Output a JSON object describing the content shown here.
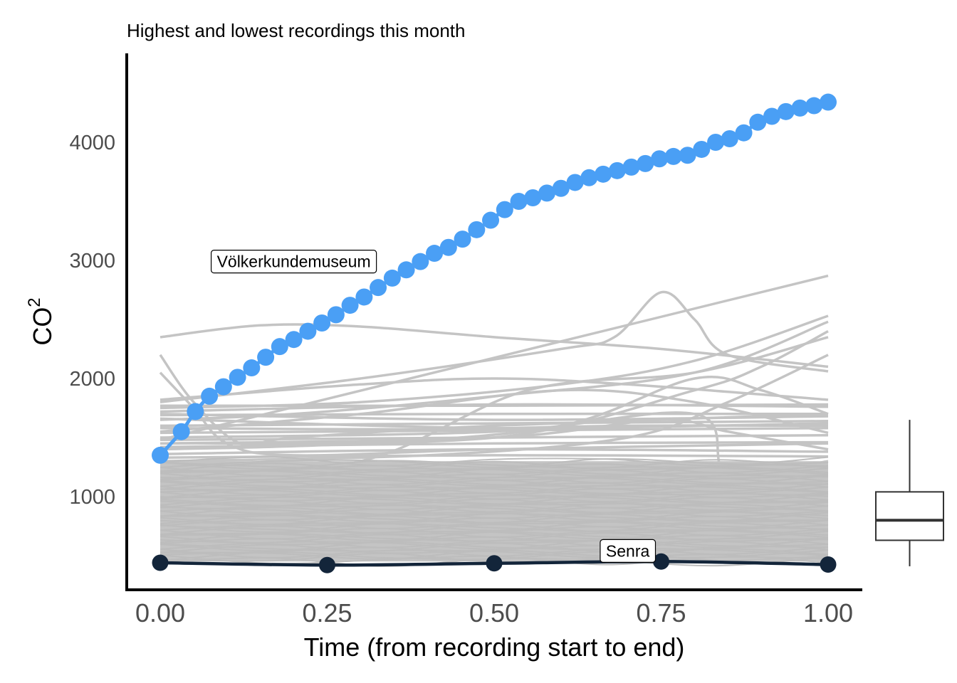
{
  "chart_data": {
    "type": "line",
    "title": "Highest and lowest recordings this month",
    "xlabel": "Time (from recording start to end)",
    "ylabel": "CO",
    "ylabel_superscript": "2",
    "xlim": [
      -0.05,
      1.05
    ],
    "ylim": [
      200,
      4750
    ],
    "x_ticks": [
      "0.00",
      "0.25",
      "0.50",
      "0.75",
      "1.00"
    ],
    "y_ticks": [
      "1000",
      "2000",
      "3000",
      "4000"
    ],
    "grid": false,
    "series": [
      {
        "name": "Völkerkundemuseum",
        "color": "#4a9ff5",
        "x": [
          0,
          0.0316,
          0.0526,
          0.0737,
          0.0947,
          0.1158,
          0.1368,
          0.1579,
          0.1789,
          0.2,
          0.2211,
          0.2421,
          0.2632,
          0.2842,
          0.3053,
          0.3263,
          0.3474,
          0.3684,
          0.3895,
          0.4105,
          0.4316,
          0.4526,
          0.4737,
          0.4947,
          0.5158,
          0.5368,
          0.5579,
          0.5789,
          0.6,
          0.6211,
          0.6421,
          0.6632,
          0.6842,
          0.7053,
          0.7263,
          0.7474,
          0.7684,
          0.7895,
          0.8105,
          0.8316,
          0.8526,
          0.8737,
          0.8947,
          0.9158,
          0.9368,
          0.9579,
          0.9789,
          1.0
        ],
        "y": [
          1350,
          1550,
          1720,
          1850,
          1930,
          2010,
          2090,
          2180,
          2270,
          2330,
          2400,
          2470,
          2540,
          2620,
          2690,
          2770,
          2850,
          2920,
          2990,
          3060,
          3110,
          3180,
          3260,
          3340,
          3430,
          3500,
          3530,
          3570,
          3610,
          3660,
          3700,
          3730,
          3760,
          3790,
          3820,
          3860,
          3880,
          3890,
          3940,
          4000,
          4030,
          4080,
          4170,
          4220,
          4260,
          4290,
          4310,
          4340
        ]
      },
      {
        "name": "Senra",
        "color": "#13253a",
        "x": [
          0,
          0.25,
          0.5,
          0.75,
          1.0
        ],
        "y": [
          440,
          420,
          435,
          450,
          425
        ]
      }
    ],
    "annotations": [
      {
        "text": "Völkerkundemuseum",
        "x": 0.2,
        "y": 2990
      },
      {
        "text": "Senra",
        "x": 0.7,
        "y": 540
      }
    ],
    "background_series": {
      "color": "#c4c4c4",
      "description_count": 150,
      "y_range": [
        450,
        1300
      ]
    },
    "background_lines": [
      {
        "x": [
          0,
          1
        ],
        "y": [
          1480,
          2870
        ]
      },
      {
        "x": [
          0,
          0.15,
          0.3,
          0.5,
          0.75,
          1.0
        ],
        "y": [
          2350,
          2450,
          2440,
          2350,
          2250,
          2100
        ]
      },
      {
        "x": [
          0,
          0.3,
          0.6,
          0.68,
          0.75,
          0.8,
          0.85,
          1.0
        ],
        "y": [
          1800,
          2000,
          2250,
          2350,
          2730,
          2500,
          2200,
          2060
        ]
      },
      {
        "x": [
          0,
          0.3,
          0.6,
          0.8,
          1.0
        ],
        "y": [
          1750,
          1800,
          1950,
          2150,
          2530
        ]
      },
      {
        "x": [
          0,
          0.2,
          0.5,
          0.8,
          1.0
        ],
        "y": [
          1650,
          1700,
          1850,
          2050,
          2480
        ]
      },
      {
        "x": [
          0,
          0.05,
          0.12,
          0.2,
          0.5,
          1.0
        ],
        "y": [
          2200,
          1800,
          1450,
          1500,
          1600,
          1700
        ]
      },
      {
        "x": [
          0,
          0.05,
          0.1,
          0.2,
          0.5,
          1.0
        ],
        "y": [
          2050,
          1750,
          1450,
          1350,
          1400,
          1450
        ]
      },
      {
        "x": [
          0,
          0.3,
          0.5,
          0.7,
          1.0
        ],
        "y": [
          1820,
          1950,
          2000,
          1950,
          1820
        ]
      },
      {
        "x": [
          0,
          0.5,
          1.0
        ],
        "y": [
          1720,
          1780,
          1760
        ]
      },
      {
        "x": [
          0,
          0.5,
          1.0
        ],
        "y": [
          1690,
          1700,
          1700
        ]
      },
      {
        "x": [
          0,
          0.5,
          1.0
        ],
        "y": [
          1770,
          1770,
          1780
        ]
      },
      {
        "x": [
          0,
          0.5,
          1.0
        ],
        "y": [
          1600,
          1620,
          1640
        ]
      },
      {
        "x": [
          0,
          0.4,
          0.7,
          1.0
        ],
        "y": [
          1580,
          1570,
          1600,
          1600
        ]
      },
      {
        "x": [
          0,
          0.3,
          0.55,
          0.8,
          1.0
        ],
        "y": [
          1200,
          1300,
          1900,
          2050,
          2350
        ]
      },
      {
        "x": [
          0,
          0.4,
          0.7,
          0.85,
          1.0
        ],
        "y": [
          1300,
          1350,
          1500,
          1800,
          2200
        ]
      },
      {
        "x": [
          0,
          0.5,
          0.8,
          0.9,
          1.0
        ],
        "y": [
          1450,
          1500,
          1900,
          2100,
          2400
        ]
      },
      {
        "x": [
          0,
          0.3,
          0.6,
          0.8,
          1.0
        ],
        "y": [
          1550,
          1700,
          1900,
          1800,
          1540
        ]
      },
      {
        "x": [
          0,
          0.5,
          0.8,
          0.85,
          1.0
        ],
        "y": [
          1500,
          1550,
          1700,
          1200,
          1300
        ]
      },
      {
        "x": [
          0,
          0.5,
          0.75,
          0.85,
          1.0
        ],
        "y": [
          1450,
          1500,
          1650,
          1550,
          1400
        ]
      },
      {
        "x": [
          0,
          0.3,
          0.6,
          0.8,
          0.9,
          1.0
        ],
        "y": [
          1400,
          1450,
          1600,
          2000,
          1900,
          1700
        ]
      },
      {
        "x": [
          0,
          0.5,
          1.0
        ],
        "y": [
          1540,
          1560,
          1580
        ]
      },
      {
        "x": [
          0,
          0.5,
          1.0
        ],
        "y": [
          1480,
          1500,
          1520
        ]
      },
      {
        "x": [
          0,
          0.5,
          1.0
        ],
        "y": [
          1420,
          1450,
          1460
        ]
      },
      {
        "x": [
          0,
          0.5,
          1.0
        ],
        "y": [
          1360,
          1400,
          1380
        ]
      },
      {
        "x": [
          0,
          0.5,
          1.0
        ],
        "y": [
          1330,
          1350,
          1340
        ]
      },
      {
        "x": [
          0,
          0.5,
          1.0
        ],
        "y": [
          1700,
          1650,
          1680
        ]
      },
      {
        "x": [
          0,
          0.5,
          1.0
        ],
        "y": [
          1660,
          1580,
          1620
        ]
      }
    ],
    "boxplot": {
      "min": 410,
      "q1": 630,
      "median": 800,
      "q3": 1040,
      "max": 1650
    }
  }
}
